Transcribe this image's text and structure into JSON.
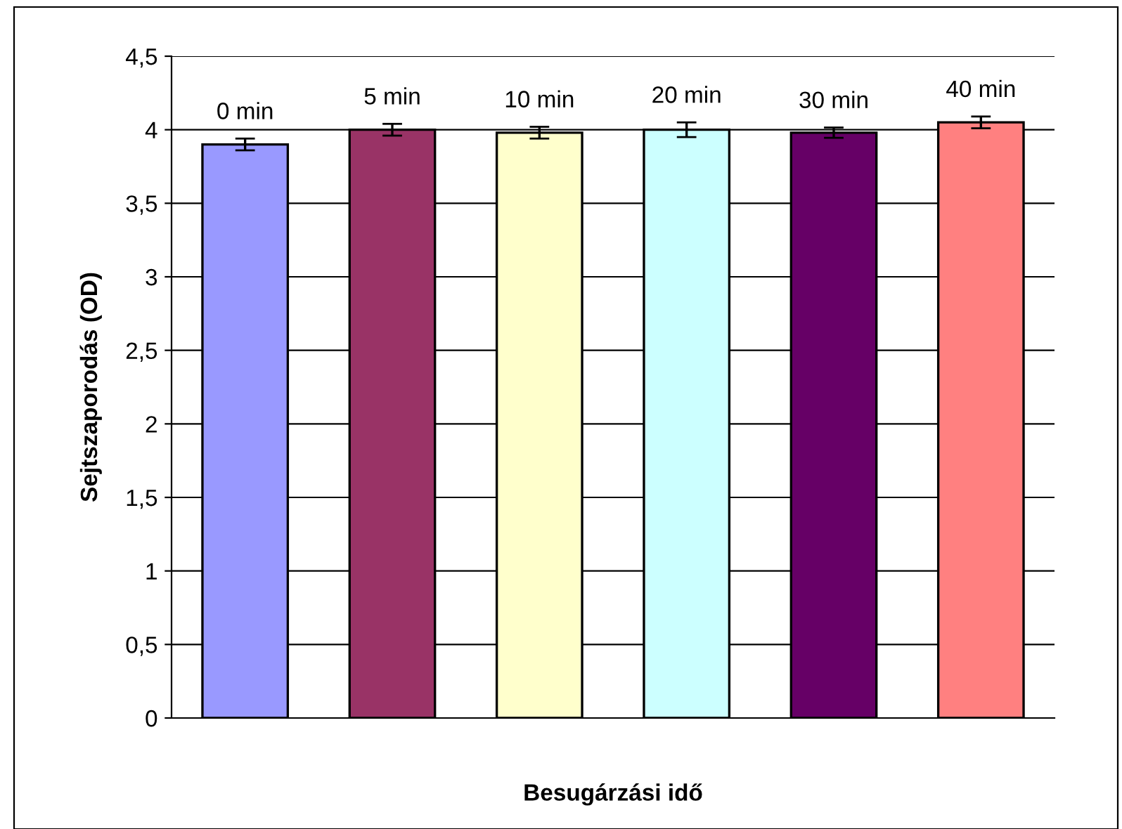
{
  "chart_data": {
    "type": "bar",
    "xlabel": "Besugárzási idő",
    "ylabel": "Sejtszaporodás (OD)",
    "categories": [
      "0 min",
      "5 min",
      "10 min",
      "20 min",
      "30 min",
      "40 min"
    ],
    "values": [
      3.9,
      4.0,
      3.98,
      4.0,
      3.98,
      4.05
    ],
    "errors": [
      0.04,
      0.04,
      0.04,
      0.05,
      0.035,
      0.04
    ],
    "colors": [
      "#9999ff",
      "#993366",
      "#ffffcc",
      "#ccffff",
      "#660066",
      "#ff8080"
    ],
    "ylim": [
      0,
      4.5
    ],
    "yticks": [
      0,
      {
        "value": 0.5,
        "label": "0,5"
      },
      1,
      {
        "value": 1.5,
        "label": "1,5"
      },
      2,
      {
        "value": 2.5,
        "label": "2,5"
      },
      3,
      {
        "value": 3.5,
        "label": "3,5"
      },
      4,
      {
        "value": 4.5,
        "label": "4,5"
      }
    ],
    "grid": "y",
    "tick_labels": "y"
  }
}
